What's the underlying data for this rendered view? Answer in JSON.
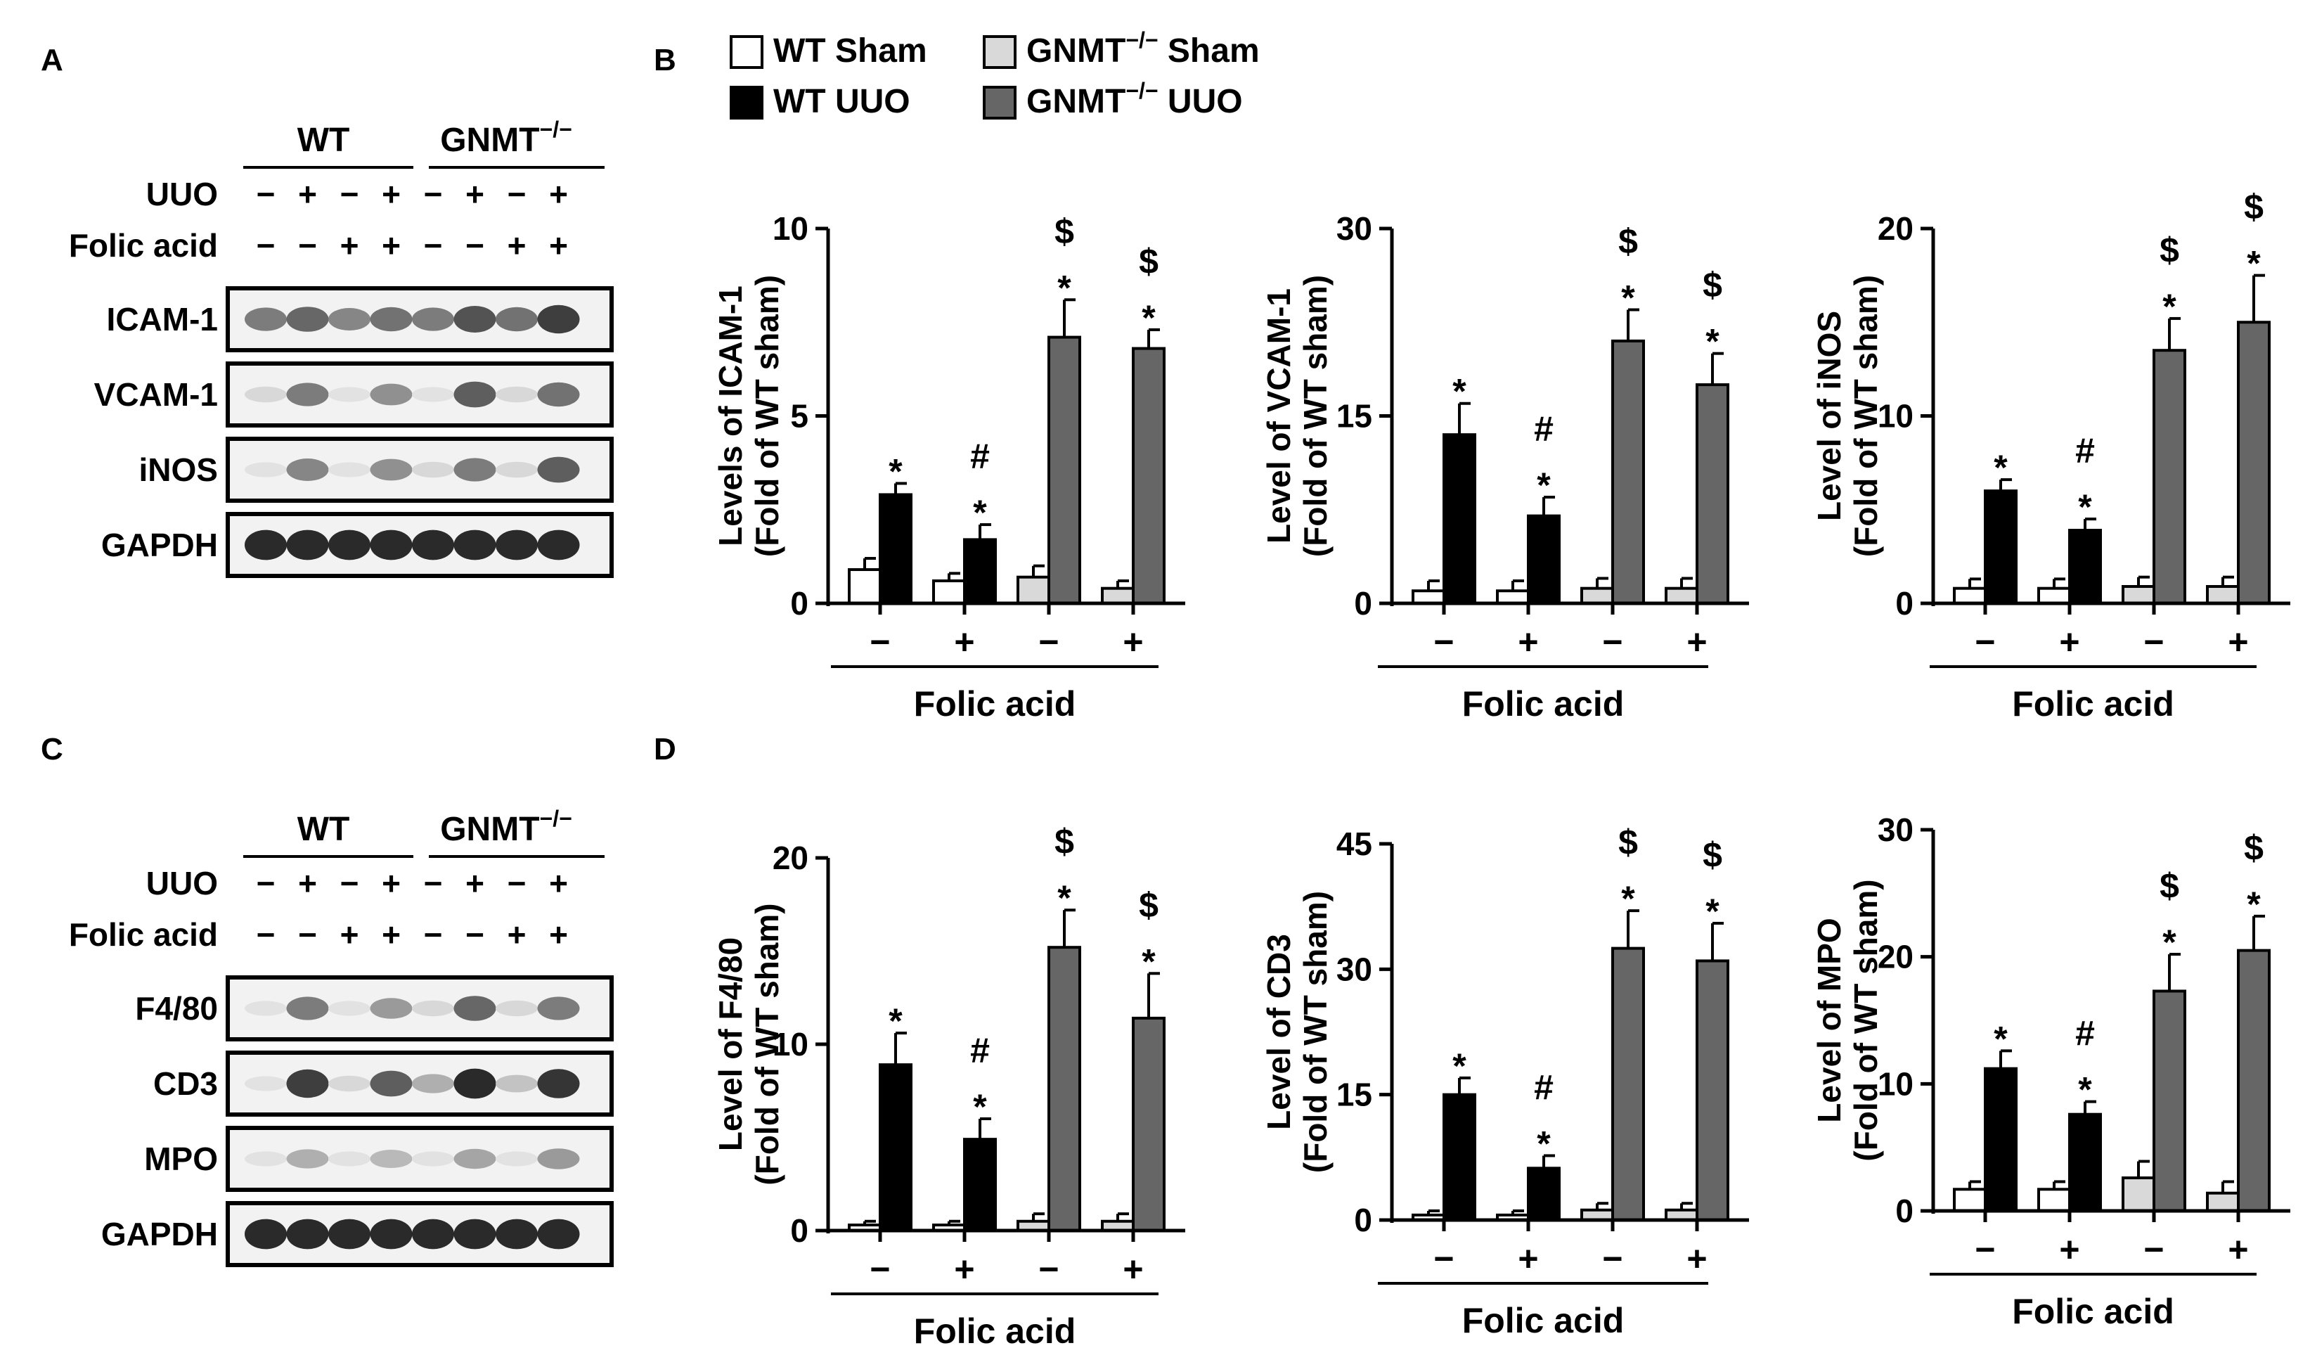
{
  "panels": {
    "A": "A",
    "B": "B",
    "C": "C",
    "D": "D"
  },
  "legend": [
    {
      "label": "WT Sham",
      "color": "#ffffff"
    },
    {
      "label": "GNMT",
      "sup": "−/−",
      "suffix": " Sham",
      "color": "#d9d9d9"
    },
    {
      "label": "WT UUO",
      "color": "#000000"
    },
    {
      "label": "GNMT",
      "sup": "−/−",
      "suffix": " UUO",
      "color": "#666666"
    }
  ],
  "blots": [
    {
      "panel": "A",
      "group_wt": "WT",
      "group_ko": "GNMT",
      "group_ko_sup": "−/−",
      "row_labels": [
        "UUO",
        "Folic acid"
      ],
      "uuo_signs": [
        "−",
        "+",
        "−",
        "+",
        "−",
        "+",
        "−",
        "+"
      ],
      "folic_signs": [
        "−",
        "−",
        "+",
        "+",
        "−",
        "−",
        "+",
        "+"
      ],
      "bands": [
        {
          "label": "ICAM-1",
          "intensity": [
            0.55,
            0.65,
            0.5,
            0.6,
            0.55,
            0.75,
            0.6,
            0.85
          ]
        },
        {
          "label": "VCAM-1",
          "intensity": [
            0.1,
            0.55,
            0.05,
            0.45,
            0.05,
            0.7,
            0.1,
            0.6
          ]
        },
        {
          "label": "iNOS",
          "intensity": [
            0.05,
            0.5,
            0.05,
            0.45,
            0.1,
            0.55,
            0.1,
            0.7
          ]
        },
        {
          "label": "GAPDH",
          "intensity": [
            0.95,
            0.95,
            0.95,
            0.95,
            0.95,
            0.95,
            0.95,
            0.95
          ]
        }
      ]
    },
    {
      "panel": "C",
      "group_wt": "WT",
      "group_ko": "GNMT",
      "group_ko_sup": "−/−",
      "row_labels": [
        "UUO",
        "Folic acid"
      ],
      "uuo_signs": [
        "−",
        "+",
        "−",
        "+",
        "−",
        "+",
        "−",
        "+"
      ],
      "folic_signs": [
        "−",
        "−",
        "+",
        "+",
        "−",
        "−",
        "+",
        "+"
      ],
      "bands": [
        {
          "label": "F4/80",
          "intensity": [
            0.05,
            0.55,
            0.05,
            0.4,
            0.1,
            0.65,
            0.1,
            0.55
          ]
        },
        {
          "label": "CD3",
          "intensity": [
            0.05,
            0.85,
            0.1,
            0.7,
            0.3,
            0.95,
            0.2,
            0.9
          ]
        },
        {
          "label": "MPO",
          "intensity": [
            0.05,
            0.3,
            0.05,
            0.25,
            0.05,
            0.35,
            0.05,
            0.4
          ]
        },
        {
          "label": "GAPDH",
          "intensity": [
            0.95,
            0.95,
            0.95,
            0.95,
            0.95,
            0.95,
            0.95,
            0.95
          ]
        }
      ]
    }
  ],
  "chart_data": [
    {
      "type": "bar",
      "panel": "B",
      "ylabel": "Levels of ICAM-1",
      "ylabel2": "(Fold of WT sham)",
      "xlabel": "Folic acid",
      "categories": [
        "−",
        "+",
        "−",
        "+"
      ],
      "ylim": [
        0,
        10
      ],
      "yticks": [
        "0",
        "5",
        "10"
      ],
      "series": [
        {
          "name": "WT Sham",
          "values": [
            0.9,
            0.6,
            null,
            null
          ],
          "errors": [
            0.3,
            0.2,
            null,
            null
          ]
        },
        {
          "name": "WT UUO",
          "values": [
            2.9,
            1.7,
            null,
            null
          ],
          "errors": [
            0.3,
            0.4,
            null,
            null
          ]
        },
        {
          "name": "GNMT−/− Sham",
          "values": [
            null,
            null,
            0.7,
            0.4
          ],
          "errors": [
            null,
            null,
            0.3,
            0.2
          ]
        },
        {
          "name": "GNMT−/− UUO",
          "values": [
            null,
            null,
            7.1,
            6.8
          ],
          "errors": [
            null,
            null,
            1.0,
            0.5
          ]
        }
      ],
      "annotations": [
        [
          "*"
        ],
        [
          "#",
          "*"
        ],
        [
          "$",
          "*"
        ],
        [
          "$",
          "*"
        ]
      ]
    },
    {
      "type": "bar",
      "panel": "B",
      "ylabel": "Level of VCAM-1",
      "ylabel2": "(Fold of WT sham)",
      "xlabel": "Folic acid",
      "categories": [
        "−",
        "+",
        "−",
        "+"
      ],
      "ylim": [
        0,
        30
      ],
      "yticks": [
        "0",
        "15",
        "30"
      ],
      "series": [
        {
          "name": "WT Sham",
          "values": [
            1.0,
            1.0,
            null,
            null
          ],
          "errors": [
            0.8,
            0.8,
            null,
            null
          ]
        },
        {
          "name": "WT UUO",
          "values": [
            13.5,
            7.0,
            null,
            null
          ],
          "errors": [
            2.5,
            1.5,
            null,
            null
          ]
        },
        {
          "name": "GNMT−/− Sham",
          "values": [
            null,
            null,
            1.2,
            1.2
          ],
          "errors": [
            null,
            null,
            0.8,
            0.8
          ]
        },
        {
          "name": "GNMT−/− UUO",
          "values": [
            null,
            null,
            21.0,
            17.5
          ],
          "errors": [
            null,
            null,
            2.5,
            2.5
          ]
        }
      ],
      "annotations": [
        [
          "*"
        ],
        [
          "#",
          "*"
        ],
        [
          "$",
          "*"
        ],
        [
          "$",
          "*"
        ]
      ]
    },
    {
      "type": "bar",
      "panel": "B",
      "ylabel": "Level of iNOS",
      "ylabel2": "(Fold of WT sham)",
      "xlabel": "Folic acid",
      "categories": [
        "−",
        "+",
        "−",
        "+"
      ],
      "ylim": [
        0,
        20
      ],
      "yticks": [
        "0",
        "10",
        "20"
      ],
      "series": [
        {
          "name": "WT Sham",
          "values": [
            0.8,
            0.8,
            null,
            null
          ],
          "errors": [
            0.5,
            0.5,
            null,
            null
          ]
        },
        {
          "name": "WT UUO",
          "values": [
            6.0,
            3.9,
            null,
            null
          ],
          "errors": [
            0.6,
            0.6,
            null,
            null
          ]
        },
        {
          "name": "GNMT−/− Sham",
          "values": [
            null,
            null,
            0.9,
            0.9
          ],
          "errors": [
            null,
            null,
            0.5,
            0.5
          ]
        },
        {
          "name": "GNMT−/− UUO",
          "values": [
            null,
            null,
            13.5,
            15.0
          ],
          "errors": [
            null,
            null,
            1.7,
            2.5
          ]
        }
      ],
      "annotations": [
        [
          "*"
        ],
        [
          "#",
          "*"
        ],
        [
          "$",
          "*"
        ],
        [
          "$",
          "*"
        ]
      ]
    },
    {
      "type": "bar",
      "panel": "D",
      "ylabel": "Level of F4/80",
      "ylabel2": "(Fold of WT sham)",
      "xlabel": "Folic acid",
      "categories": [
        "−",
        "+",
        "−",
        "+"
      ],
      "ylim": [
        0,
        20
      ],
      "yticks": [
        "0",
        "10",
        "20"
      ],
      "series": [
        {
          "name": "WT Sham",
          "values": [
            0.3,
            0.3,
            null,
            null
          ],
          "errors": [
            0.2,
            0.2,
            null,
            null
          ]
        },
        {
          "name": "WT UUO",
          "values": [
            8.9,
            4.9,
            null,
            null
          ],
          "errors": [
            1.7,
            1.1,
            null,
            null
          ]
        },
        {
          "name": "GNMT−/− Sham",
          "values": [
            null,
            null,
            0.5,
            0.5
          ],
          "errors": [
            null,
            null,
            0.4,
            0.4
          ]
        },
        {
          "name": "GNMT−/− UUO",
          "values": [
            null,
            null,
            15.2,
            11.4
          ],
          "errors": [
            null,
            null,
            2.0,
            2.4
          ]
        }
      ],
      "annotations": [
        [
          "*"
        ],
        [
          "#",
          "*"
        ],
        [
          "$",
          "*"
        ],
        [
          "$",
          "*"
        ]
      ]
    },
    {
      "type": "bar",
      "panel": "D",
      "ylabel": "Level of CD3",
      "ylabel2": "(Fold of WT sham)",
      "xlabel": "Folic acid",
      "categories": [
        "−",
        "+",
        "−",
        "+"
      ],
      "ylim": [
        0,
        45
      ],
      "yticks": [
        "0",
        "15",
        "30",
        "45"
      ],
      "series": [
        {
          "name": "WT Sham",
          "values": [
            0.6,
            0.6,
            null,
            null
          ],
          "errors": [
            0.5,
            0.5,
            null,
            null
          ]
        },
        {
          "name": "WT UUO",
          "values": [
            15.0,
            6.2,
            null,
            null
          ],
          "errors": [
            2.0,
            1.5,
            null,
            null
          ]
        },
        {
          "name": "GNMT−/− Sham",
          "values": [
            null,
            null,
            1.2,
            1.2
          ],
          "errors": [
            null,
            null,
            0.8,
            0.8
          ]
        },
        {
          "name": "GNMT−/− UUO",
          "values": [
            null,
            null,
            32.5,
            31.0
          ],
          "errors": [
            null,
            null,
            4.5,
            4.5
          ]
        }
      ],
      "annotations": [
        [
          "*"
        ],
        [
          "#",
          "*"
        ],
        [
          "$",
          "*"
        ],
        [
          "$",
          "*"
        ]
      ]
    },
    {
      "type": "bar",
      "panel": "D",
      "ylabel": "Level of MPO",
      "ylabel2": "(Fold of WT sham)",
      "xlabel": "Folic acid",
      "categories": [
        "−",
        "+",
        "−",
        "+"
      ],
      "ylim": [
        0,
        30
      ],
      "yticks": [
        "0",
        "10",
        "20",
        "30"
      ],
      "series": [
        {
          "name": "WT Sham",
          "values": [
            1.7,
            1.7,
            null,
            null
          ],
          "errors": [
            0.6,
            0.6,
            null,
            null
          ]
        },
        {
          "name": "WT UUO",
          "values": [
            11.2,
            7.6,
            null,
            null
          ],
          "errors": [
            1.4,
            1.0,
            null,
            null
          ]
        },
        {
          "name": "GNMT−/− Sham",
          "values": [
            null,
            null,
            2.6,
            1.4
          ],
          "errors": [
            null,
            null,
            1.3,
            0.9
          ]
        },
        {
          "name": "GNMT−/− UUO",
          "values": [
            null,
            null,
            17.3,
            20.5
          ],
          "errors": [
            null,
            null,
            2.9,
            2.7
          ]
        }
      ],
      "annotations": [
        [
          "*"
        ],
        [
          "#",
          "*"
        ],
        [
          "$",
          "*"
        ],
        [
          "$",
          "*"
        ]
      ]
    }
  ]
}
